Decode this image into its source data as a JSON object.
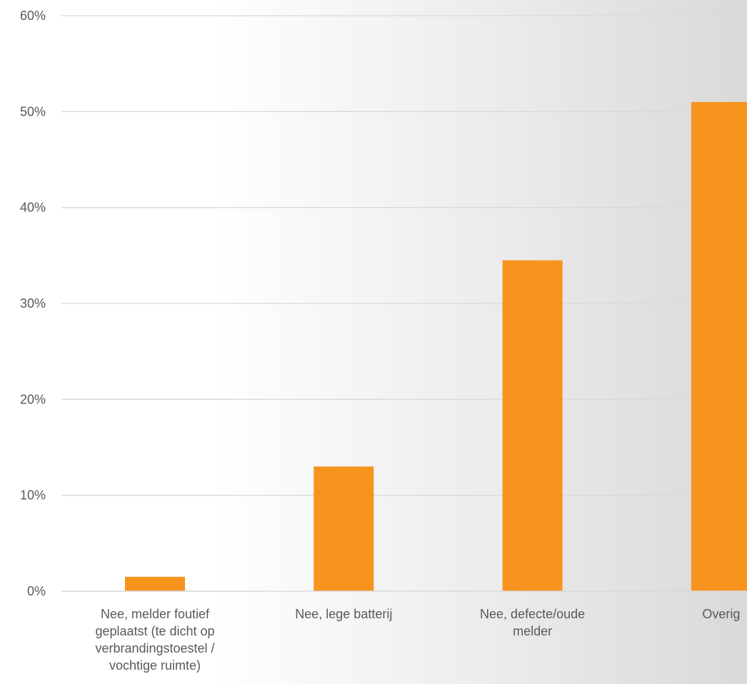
{
  "chart_data": {
    "type": "bar",
    "title": "",
    "xlabel": "",
    "ylabel": "",
    "categories": [
      "Nee, melder foutief geplaatst (te dicht op verbrandingstoestel / vochtige ruimte)",
      "Nee, lege batterij",
      "Nee, defecte/oude melder",
      "Overig"
    ],
    "category_lines": [
      [
        "Nee, melder foutief",
        "geplaatst (te dicht op",
        "verbrandingstoestel /",
        "vochtige ruimte)"
      ],
      [
        "Nee, lege batterij"
      ],
      [
        "Nee, defecte/oude",
        "melder"
      ],
      [
        "Overig"
      ]
    ],
    "values": [
      1.5,
      13.0,
      34.5,
      51.0
    ],
    "ylim": [
      0,
      60
    ],
    "yticks": [
      "0%",
      "10%",
      "20%",
      "30%",
      "40%",
      "50%",
      "60%"
    ],
    "grid": true,
    "legend": "none",
    "colors": {
      "bar": "#f7941d",
      "grid": "#d9d9d9",
      "text": "#595959"
    }
  }
}
